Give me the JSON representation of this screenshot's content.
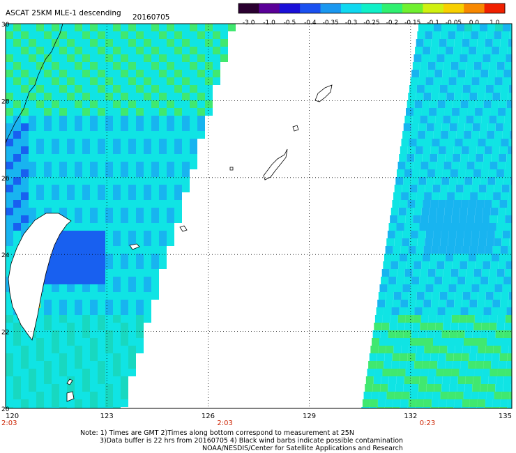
{
  "header": {
    "title": "ASCAT 25KM MLE-1 descending",
    "date": "20160705"
  },
  "colorbar": {
    "tick_labels": [
      "-3.0",
      "-1.0",
      "-0.5",
      "-0.4",
      "-0.35",
      "-0.3",
      "-0.25",
      "-0.2",
      "-0.15",
      "-0.1",
      "-0.05",
      "0.0",
      "1.0"
    ],
    "colors": [
      "#2a0030",
      "#5a0098",
      "#1a10d8",
      "#1a50f0",
      "#1a98f0",
      "#10d8f0",
      "#10f0c8",
      "#30f070",
      "#70f030",
      "#d0f010",
      "#f8d000",
      "#f88800",
      "#f02000"
    ]
  },
  "map": {
    "lon_labels": [
      "120",
      "123",
      "126",
      "129",
      "132",
      "135"
    ],
    "lat_labels": [
      "30",
      "28",
      "26",
      "24",
      "22",
      "20"
    ],
    "lon_range": [
      120,
      135
    ],
    "lat_range": [
      20,
      30
    ],
    "swath_times": [
      {
        "label": "2:03",
        "lon": 120
      },
      {
        "label": "2:03",
        "lon": 126.5
      },
      {
        "label": "0:23",
        "lon": 132.5
      }
    ],
    "colors": {
      "green": "#40e870",
      "cyan": "#10e4e4",
      "teal": "#18d8c0",
      "lightblue": "#18b4f0",
      "blue": "#1860f0",
      "darkblue": "#1830e0",
      "yellow": "#f8e020",
      "coast": "#000000",
      "grid": "#000000"
    }
  },
  "notes": {
    "line1": "Note: 1) Times are GMT 2)Times along bottom correspond to measurement at 25N",
    "line2": "3)Data buffer is 22 hrs from 20160705 4) Black wind barbs indicate possible contamination",
    "line3": "NOAA/NESDIS/Center for Satellite Applications and Research"
  }
}
